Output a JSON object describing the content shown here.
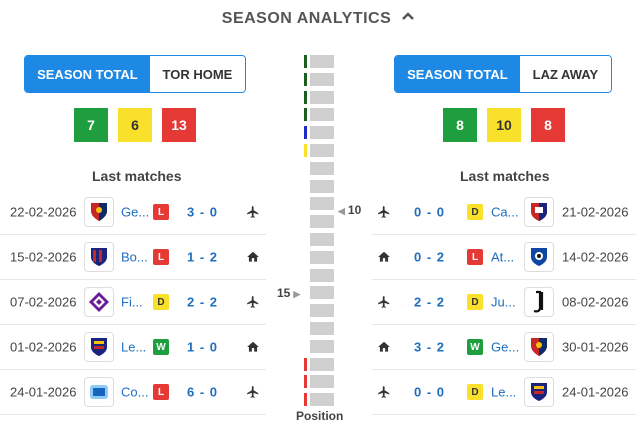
{
  "header": {
    "title": "SEASON ANALYTICS",
    "icon": "chevron-up-icon"
  },
  "left": {
    "toggle": {
      "season": "SEASON TOTAL",
      "venue": "TOR HOME"
    },
    "counts": {
      "win": "7",
      "draw": "6",
      "loss": "13"
    },
    "last_matches_title": "Last matches",
    "matches": [
      {
        "date": "22-02-2026",
        "team": "Ge...",
        "result": "L",
        "score": "3 - 0",
        "venue": "plane-icon",
        "crest": "genoa"
      },
      {
        "date": "15-02-2026",
        "team": "Bo...",
        "result": "L",
        "score": "1 - 2",
        "venue": "home-icon",
        "crest": "bologna"
      },
      {
        "date": "07-02-2026",
        "team": "Fi...",
        "result": "D",
        "score": "2 - 2",
        "venue": "plane-icon",
        "crest": "fiorentina"
      },
      {
        "date": "01-02-2026",
        "team": "Le...",
        "result": "W",
        "score": "1 - 0",
        "venue": "home-icon",
        "crest": "lecce"
      },
      {
        "date": "24-01-2026",
        "team": "Co...",
        "result": "L",
        "score": "6 - 0",
        "venue": "plane-icon",
        "crest": "como"
      }
    ]
  },
  "right": {
    "toggle": {
      "season": "SEASON TOTAL",
      "venue": "LAZ AWAY"
    },
    "counts": {
      "win": "8",
      "draw": "10",
      "loss": "8"
    },
    "last_matches_title": "Last matches",
    "matches": [
      {
        "date": "21-02-2026",
        "team": "Ca...",
        "result": "D",
        "score": "0 - 0",
        "venue": "plane-icon",
        "crest": "cagliari"
      },
      {
        "date": "14-02-2026",
        "team": "At...",
        "result": "L",
        "score": "0 - 2",
        "venue": "home-icon",
        "crest": "atalanta"
      },
      {
        "date": "08-02-2026",
        "team": "Ju...",
        "result": "D",
        "score": "2 - 2",
        "venue": "plane-icon",
        "crest": "juventus"
      },
      {
        "date": "30-01-2026",
        "team": "Ge...",
        "result": "W",
        "score": "3 - 2",
        "venue": "home-icon",
        "crest": "genoa"
      },
      {
        "date": "24-01-2026",
        "team": "Le...",
        "result": "D",
        "score": "0 - 0",
        "venue": "plane-icon",
        "crest": "lecce"
      }
    ]
  },
  "position": {
    "title": "Position",
    "total_positions": 20,
    "right_team_position": "10",
    "left_team_position": "15",
    "zone_colors": {
      "champions": "#1b5e20",
      "europa": "#1e2fbf",
      "conference": "#f9e02a",
      "relegation": "#e53935"
    }
  },
  "colors": {
    "accent": "#1e88e5",
    "win": "#1e9e3e",
    "draw": "#f9e02a",
    "loss": "#e53935",
    "link": "#1e6fbf"
  }
}
